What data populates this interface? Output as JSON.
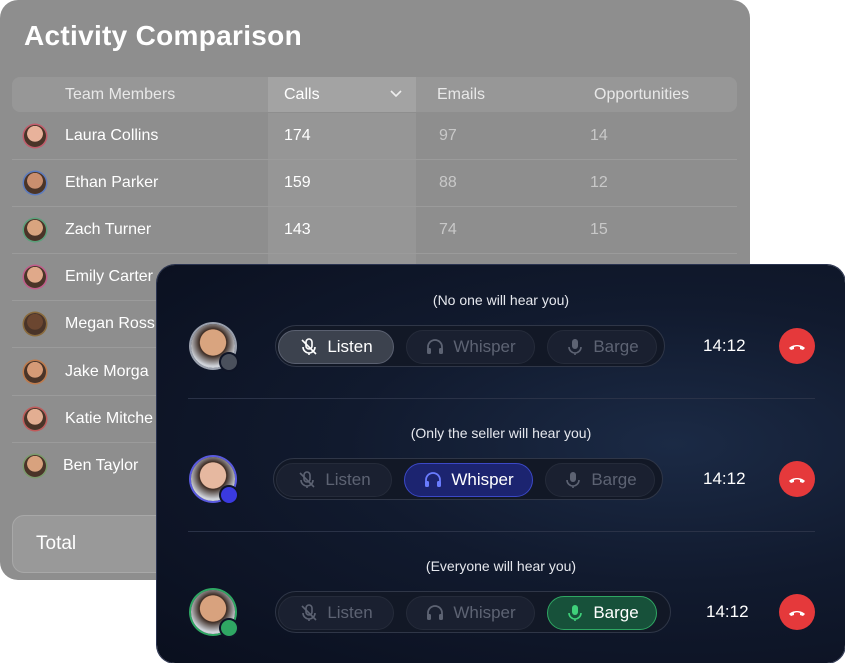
{
  "activity": {
    "title": "Activity Comparison",
    "headers": [
      "Team Members",
      "Calls",
      "Emails",
      "Opportunities"
    ],
    "rows": [
      [
        "Laura Collins",
        174,
        97,
        14
      ],
      [
        "Ethan Parker",
        159,
        88,
        12
      ],
      [
        "Zach Turner",
        143,
        74,
        15
      ],
      [
        "Emily Carter"
      ],
      [
        "Megan Ross"
      ],
      [
        "Jake Morga"
      ],
      [
        "Katie Mitche"
      ],
      [
        "Ben Taylor"
      ]
    ],
    "total": "Total"
  },
  "monitor": {
    "rows": [
      {
        "hint": "(No one will hear you)",
        "buttons": [
          "Listen",
          "Whisper",
          "Barge"
        ],
        "time": "14:12"
      },
      {
        "hint": "(Only the seller will hear you)",
        "buttons": [
          "Listen",
          "Whisper",
          "Barge"
        ],
        "time": "14:12"
      },
      {
        "hint": "(Everyone will hear you)",
        "buttons": [
          "Listen",
          "Whisper",
          "Barge"
        ],
        "time": "14:12"
      }
    ]
  }
}
